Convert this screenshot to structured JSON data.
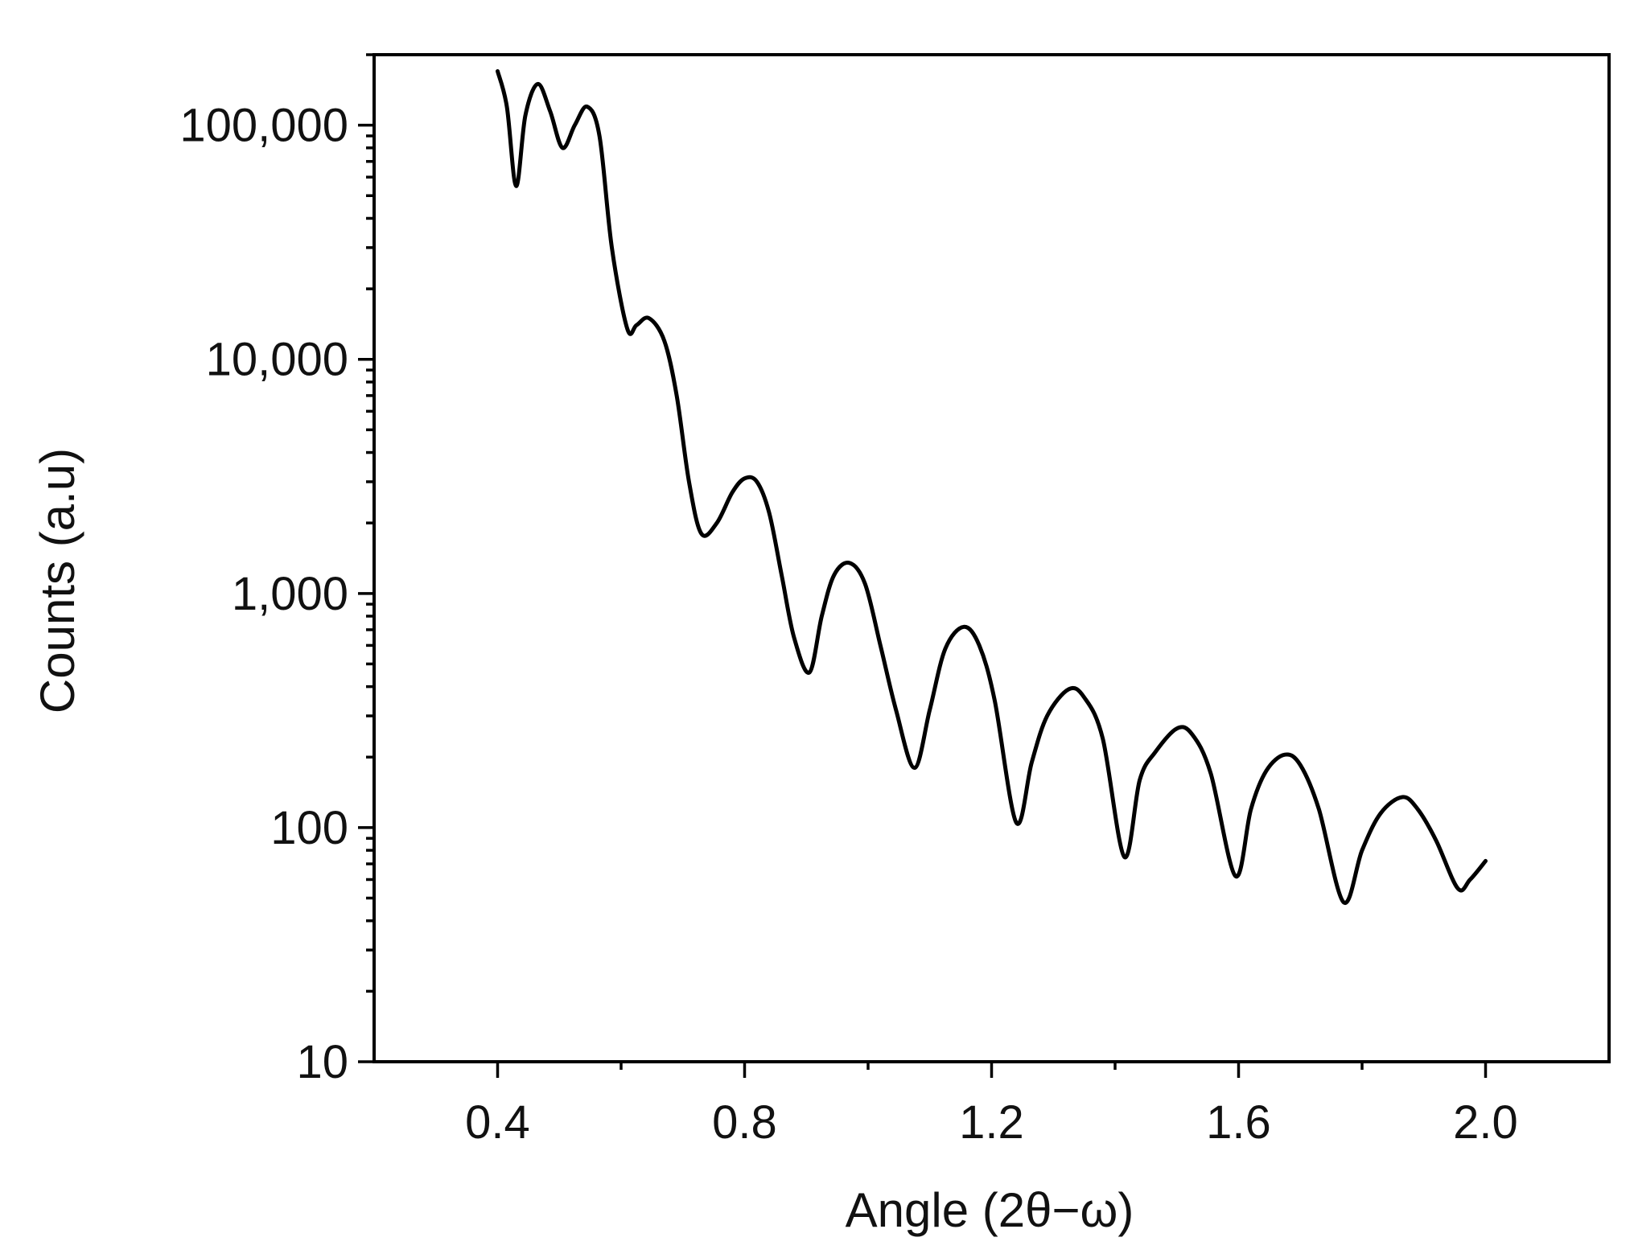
{
  "chart_data": {
    "type": "line",
    "title": "",
    "xlabel": "Angle (2θ−ω)",
    "ylabel": "Counts (a.u)",
    "xlim": [
      0.2,
      2.2
    ],
    "ylim": [
      10,
      200000
    ],
    "yscale": "log",
    "grid": false,
    "legend": "none",
    "x_ticks": [
      0.4,
      0.8,
      1.2,
      1.6,
      2.0
    ],
    "x_tick_labels": [
      "0.4",
      "0.8",
      "1.2",
      "1.6",
      "2.0"
    ],
    "y_ticks": [
      10,
      100,
      1000,
      10000,
      100000
    ],
    "y_tick_labels": [
      "10",
      "100",
      "1,000",
      "10,000",
      "100,000"
    ],
    "series": [
      {
        "color": "#000000",
        "x": [
          0.4,
          0.415,
          0.43,
          0.445,
          0.465,
          0.485,
          0.505,
          0.525,
          0.545,
          0.565,
          0.585,
          0.61,
          0.625,
          0.645,
          0.67,
          0.69,
          0.71,
          0.73,
          0.755,
          0.78,
          0.8,
          0.82,
          0.84,
          0.86,
          0.88,
          0.905,
          0.925,
          0.945,
          0.97,
          0.995,
          1.02,
          1.045,
          1.075,
          1.1,
          1.125,
          1.155,
          1.18,
          1.205,
          1.24,
          1.265,
          1.29,
          1.325,
          1.35,
          1.38,
          1.415,
          1.44,
          1.465,
          1.5,
          1.525,
          1.555,
          1.595,
          1.62,
          1.645,
          1.675,
          1.7,
          1.73,
          1.77,
          1.8,
          1.83,
          1.865,
          1.89,
          1.92,
          1.955,
          1.975,
          2.0
        ],
        "y": [
          170000,
          120000,
          55000,
          110000,
          150000,
          115000,
          80000,
          100000,
          120000,
          90000,
          30000,
          13500,
          14000,
          15000,
          12000,
          7000,
          3000,
          1800,
          2000,
          2700,
          3100,
          3000,
          2200,
          1200,
          650,
          460,
          800,
          1200,
          1350,
          1100,
          600,
          320,
          180,
          320,
          580,
          720,
          600,
          350,
          105,
          190,
          300,
          390,
          360,
          240,
          75,
          160,
          210,
          265,
          250,
          170,
          62,
          120,
          175,
          205,
          185,
          120,
          48,
          80,
          115,
          135,
          120,
          88,
          55,
          60,
          72
        ]
      }
    ]
  }
}
